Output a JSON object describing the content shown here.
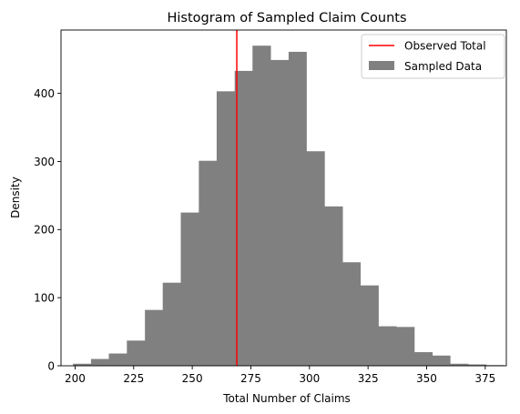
{
  "chart_data": {
    "type": "bar",
    "title": "Histogram of Sampled Claim Counts",
    "xlabel": "Total Number of Claims",
    "ylabel": "Density",
    "xlim": [
      194,
      384
    ],
    "ylim": [
      0,
      493
    ],
    "xticks": [
      200,
      225,
      250,
      275,
      300,
      325,
      350,
      375
    ],
    "yticks": [
      0,
      100,
      200,
      300,
      400
    ],
    "bar_color": "#808080",
    "bins": [
      {
        "x0": 199.1,
        "x1": 206.8,
        "value": 3
      },
      {
        "x0": 206.8,
        "x1": 214.4,
        "value": 10
      },
      {
        "x0": 214.4,
        "x1": 222.1,
        "value": 18
      },
      {
        "x0": 222.1,
        "x1": 229.8,
        "value": 37
      },
      {
        "x0": 229.8,
        "x1": 237.4,
        "value": 82
      },
      {
        "x0": 237.4,
        "x1": 245.1,
        "value": 122
      },
      {
        "x0": 245.1,
        "x1": 252.8,
        "value": 225
      },
      {
        "x0": 252.8,
        "x1": 260.4,
        "value": 301
      },
      {
        "x0": 260.4,
        "x1": 268.1,
        "value": 403
      },
      {
        "x0": 268.1,
        "x1": 275.7,
        "value": 433
      },
      {
        "x0": 275.7,
        "x1": 283.4,
        "value": 470
      },
      {
        "x0": 283.4,
        "x1": 291.1,
        "value": 449
      },
      {
        "x0": 291.1,
        "x1": 298.7,
        "value": 461
      },
      {
        "x0": 298.7,
        "x1": 306.4,
        "value": 315
      },
      {
        "x0": 306.4,
        "x1": 314.1,
        "value": 234
      },
      {
        "x0": 314.1,
        "x1": 321.7,
        "value": 152
      },
      {
        "x0": 321.7,
        "x1": 329.4,
        "value": 118
      },
      {
        "x0": 329.4,
        "x1": 337.0,
        "value": 58
      },
      {
        "x0": 337.0,
        "x1": 344.7,
        "value": 57
      },
      {
        "x0": 344.7,
        "x1": 352.4,
        "value": 20
      },
      {
        "x0": 352.4,
        "x1": 360.0,
        "value": 15
      },
      {
        "x0": 360.0,
        "x1": 367.7,
        "value": 3
      },
      {
        "x0": 367.7,
        "x1": 375.4,
        "value": 2
      },
      {
        "x0": 375.4,
        "x1": 383.0,
        "value": 1
      }
    ],
    "observed_line": {
      "x": 269,
      "color": "#ff0000"
    },
    "legend": {
      "position": "top-right",
      "entries": [
        {
          "label": "Observed Total",
          "kind": "line",
          "color": "#ff0000"
        },
        {
          "label": "Sampled Data",
          "kind": "patch",
          "color": "#808080"
        }
      ]
    }
  }
}
